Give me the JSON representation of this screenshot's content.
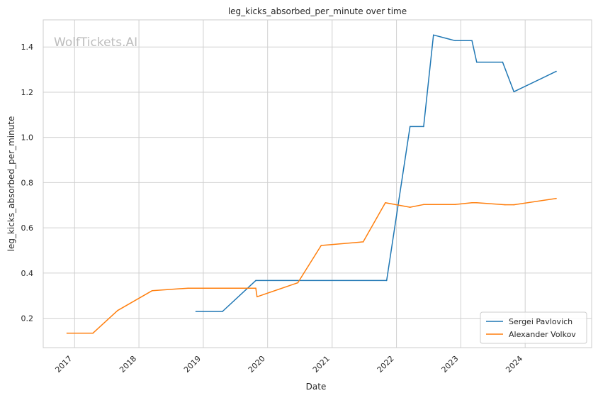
{
  "watermark": "WolfTickets.AI",
  "chart_data": {
    "type": "line",
    "title": "leg_kicks_absorbed_per_minute over time",
    "xlabel": "Date",
    "ylabel": "leg_kicks_absorbed_per_minute",
    "x_type": "date",
    "xlim": [
      "2016-07-07",
      "2025-01-12"
    ],
    "ylim": [
      0.07,
      1.52
    ],
    "x_ticks": [
      {
        "date": "2017-01-01",
        "label": "2017"
      },
      {
        "date": "2018-01-01",
        "label": "2018"
      },
      {
        "date": "2019-01-01",
        "label": "2019"
      },
      {
        "date": "2020-01-01",
        "label": "2020"
      },
      {
        "date": "2021-01-01",
        "label": "2021"
      },
      {
        "date": "2022-01-01",
        "label": "2022"
      },
      {
        "date": "2023-01-01",
        "label": "2023"
      },
      {
        "date": "2024-01-01",
        "label": "2024"
      }
    ],
    "y_ticks": [
      {
        "value": 0.2,
        "label": "0.2"
      },
      {
        "value": 0.4,
        "label": "0.4"
      },
      {
        "value": 0.6,
        "label": "0.6"
      },
      {
        "value": 0.8,
        "label": "0.8"
      },
      {
        "value": 1.0,
        "label": "1.0"
      },
      {
        "value": 1.2,
        "label": "1.2"
      },
      {
        "value": 1.4,
        "label": "1.4"
      }
    ],
    "grid": true,
    "legend_position": "bottom-right",
    "series": [
      {
        "name": "Sergei Pavlovich",
        "color": "#1f77b4",
        "points": [
          {
            "x": "2018-11-20",
            "y": 0.23
          },
          {
            "x": "2019-04-20",
            "y": 0.23
          },
          {
            "x": "2019-10-26",
            "y": 0.367
          },
          {
            "x": "2021-11-06",
            "y": 0.367
          },
          {
            "x": "2022-03-19",
            "y": 1.048
          },
          {
            "x": "2022-06-04",
            "y": 1.048
          },
          {
            "x": "2022-07-30",
            "y": 1.453
          },
          {
            "x": "2022-11-29",
            "y": 1.428
          },
          {
            "x": "2023-03-05",
            "y": 1.428
          },
          {
            "x": "2023-04-01",
            "y": 1.333
          },
          {
            "x": "2023-08-26",
            "y": 1.333
          },
          {
            "x": "2023-10-29",
            "y": 1.202
          },
          {
            "x": "2024-06-25",
            "y": 1.292
          }
        ]
      },
      {
        "name": "Alexander Volkov",
        "color": "#ff7f0e",
        "points": [
          {
            "x": "2016-11-19",
            "y": 0.134
          },
          {
            "x": "2017-04-15",
            "y": 0.134
          },
          {
            "x": "2017-09-02",
            "y": 0.234
          },
          {
            "x": "2018-03-17",
            "y": 0.322
          },
          {
            "x": "2018-10-06",
            "y": 0.333
          },
          {
            "x": "2019-10-26",
            "y": 0.333
          },
          {
            "x": "2019-11-02",
            "y": 0.295
          },
          {
            "x": "2020-06-20",
            "y": 0.357
          },
          {
            "x": "2020-10-31",
            "y": 0.522
          },
          {
            "x": "2021-06-26",
            "y": 0.538
          },
          {
            "x": "2021-10-30",
            "y": 0.711
          },
          {
            "x": "2022-03-19",
            "y": 0.691
          },
          {
            "x": "2022-06-04",
            "y": 0.703
          },
          {
            "x": "2022-11-29",
            "y": 0.703
          },
          {
            "x": "2023-03-05",
            "y": 0.711
          },
          {
            "x": "2023-04-01",
            "y": 0.711
          },
          {
            "x": "2023-09-09",
            "y": 0.702
          },
          {
            "x": "2023-10-29",
            "y": 0.702
          },
          {
            "x": "2024-06-25",
            "y": 0.73
          }
        ]
      }
    ]
  }
}
